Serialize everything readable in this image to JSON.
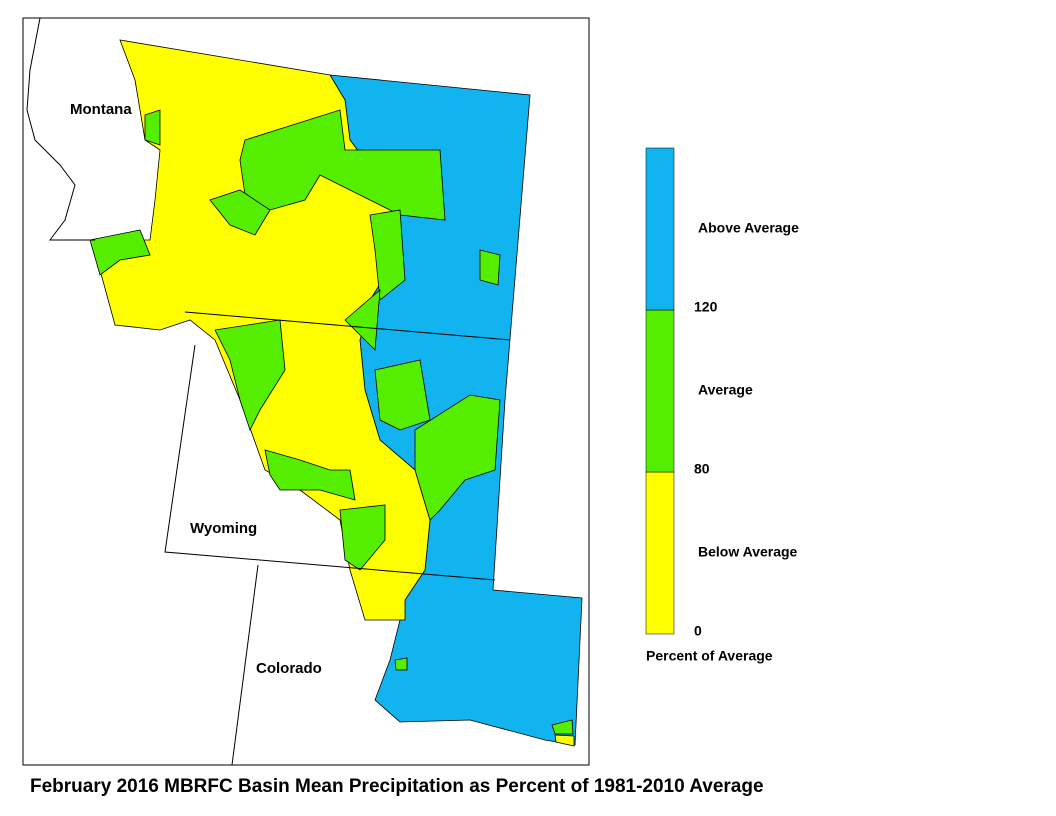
{
  "map": {
    "state_labels": [
      "Montana",
      "Wyoming",
      "Colorado"
    ]
  },
  "legend": {
    "title": "Percent of Average",
    "bins": [
      {
        "label": "Below Average",
        "color": "#ffff00"
      },
      {
        "label": "Average",
        "color": "#55ee00"
      },
      {
        "label": "Above Average",
        "color": "#11b4ef"
      }
    ],
    "ticks": [
      0,
      80,
      120
    ]
  },
  "caption": "February 2016 MBRFC Basin Mean Precipitation as Percent of 1981-2010 Average"
}
